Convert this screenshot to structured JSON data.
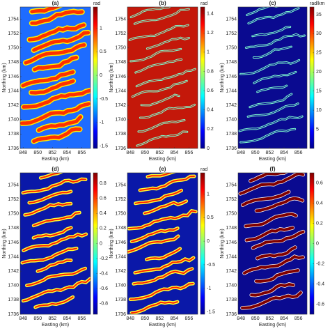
{
  "chart_data": [
    {
      "type": "image",
      "title": "(a)",
      "xlabel": "Easting (km)",
      "ylabel": "Northing (km)",
      "xlim": [
        847.6,
        857.2
      ],
      "xticks": [
        848,
        850,
        852,
        854,
        856
      ],
      "ylim": [
        1736,
        1755.7
      ],
      "yticks": [
        1736,
        1738,
        1740,
        1742,
        1744,
        1746,
        1748,
        1750,
        1752,
        1754
      ],
      "colorbar": {
        "label": "rad",
        "lim": [
          -1.55,
          1.45
        ],
        "ticks": [
          -1.5,
          -1,
          -0.5,
          0,
          0.5,
          1
        ]
      }
    },
    {
      "type": "image",
      "title": "(b)",
      "xlabel": "Easting (km)",
      "ylabel": "Northing (km)",
      "xlim": [
        847.6,
        857.2
      ],
      "xticks": [
        848,
        850,
        852,
        854,
        856
      ],
      "ylim": [
        1736,
        1755.7
      ],
      "yticks": [
        1736,
        1738,
        1740,
        1742,
        1744,
        1746,
        1748,
        1750,
        1752,
        1754
      ],
      "colorbar": {
        "label": "rad",
        "lim": [
          0,
          1.47
        ],
        "ticks": [
          0,
          0.2,
          0.4,
          0.6,
          0.8,
          1,
          1.2,
          1.4
        ]
      }
    },
    {
      "type": "image",
      "title": "(c)",
      "xlabel": "Easting (km)",
      "ylabel": "Northing (km)",
      "xlim": [
        847.6,
        857.2
      ],
      "xticks": [
        848,
        850,
        852,
        854,
        856
      ],
      "ylim": [
        1736,
        1755.7
      ],
      "yticks": [
        1736,
        1738,
        1740,
        1742,
        1744,
        1746,
        1748,
        1750,
        1752,
        1754
      ],
      "colorbar": {
        "label": "rad/km",
        "lim": [
          0,
          37
        ],
        "ticks": [
          5,
          10,
          15,
          20,
          25,
          30,
          35
        ]
      }
    },
    {
      "type": "image",
      "title": "(d)",
      "xlabel": "Easting (km)",
      "ylabel": "Northing (km)",
      "xlim": [
        847.6,
        857.2
      ],
      "xticks": [
        848,
        850,
        852,
        854,
        856
      ],
      "ylim": [
        1736,
        1755.7
      ],
      "yticks": [
        1736,
        1738,
        1740,
        1742,
        1744,
        1746,
        1748,
        1750,
        1752,
        1754
      ],
      "colorbar": {
        "lim": [
          -0.94,
          0.94
        ],
        "ticks": [
          -0.8,
          -0.6,
          -0.4,
          -0.2,
          0,
          0.2,
          0.4,
          0.6,
          0.8
        ]
      }
    },
    {
      "type": "image",
      "title": "(e)",
      "xlabel": "Easting (km)",
      "ylabel": "Northing (km)",
      "xlim": [
        847.6,
        857.2
      ],
      "xticks": [
        848,
        850,
        852,
        854,
        856
      ],
      "ylim": [
        1736,
        1755.7
      ],
      "yticks": [
        1736,
        1738,
        1740,
        1742,
        1744,
        1746,
        1748,
        1750,
        1752,
        1754
      ],
      "colorbar": {
        "label": "rad",
        "lim": [
          -1.55,
          1.45
        ],
        "ticks": [
          -1.5,
          -1,
          -0.5,
          0,
          0.5,
          1
        ]
      }
    },
    {
      "type": "image",
      "title": "(f)",
      "xlabel": "Easting (km)",
      "ylabel": "Northing (km)",
      "xlim": [
        847.6,
        857.2
      ],
      "xticks": [
        848,
        850,
        852,
        854,
        856
      ],
      "ylim": [
        1736,
        1755.7
      ],
      "yticks": [
        1736,
        1738,
        1740,
        1742,
        1744,
        1746,
        1748,
        1750,
        1752,
        1754
      ],
      "colorbar": {
        "lim": [
          -0.7,
          0.7
        ],
        "ticks": [
          -0.6,
          -0.4,
          -0.2,
          0,
          0.2,
          0.4,
          0.6
        ]
      }
    }
  ]
}
